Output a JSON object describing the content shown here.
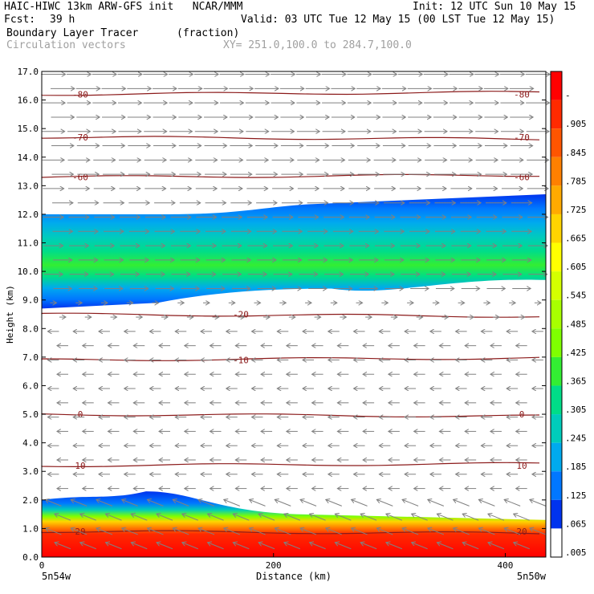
{
  "header": {
    "title_left": "HAIC-HIWC 13km ARW-GFS init   NCAR/MMM",
    "init": "Init: 12 UTC Sun 10 May 15",
    "fcst_label": "Fcst:",
    "fcst_value": "39 h",
    "valid": "Valid: 03 UTC Tue 12 May 15 (00 LST Tue 12 May 15)",
    "field_name": "Boundary Layer Tracer",
    "field_units": "(fraction)",
    "vector_name": "Circulation vectors",
    "xsec": "XY= 251.0,100.0 to 284.7,100.0"
  },
  "chart_data": {
    "type": "heatmap",
    "ylabel": "Height (km)",
    "xlabel": "Distance (km)",
    "x_start_label": "5n54w",
    "x_end_label": "5n50w",
    "xlim": [
      0,
      435
    ],
    "ylim": [
      0,
      17
    ],
    "xticks": [
      "0",
      "200",
      "400"
    ],
    "xtick_values": [
      0,
      200,
      400
    ],
    "yticks": [
      "0.0",
      "1.0",
      "2.0",
      "3.0",
      "4.0",
      "5.0",
      "6.0",
      "7.0",
      "8.0",
      "9.0",
      "10.0",
      "11.0",
      "12.0",
      "13.0",
      "14.0",
      "15.0",
      "16.0",
      "17.0"
    ],
    "colorbar": {
      "labels": [
        "-",
        ".905",
        ".845",
        ".785",
        ".725",
        ".665",
        ".605",
        ".545",
        ".485",
        ".425",
        ".365",
        ".305",
        ".245",
        ".185",
        ".125",
        ".065",
        ".005"
      ],
      "colors": [
        "#ff0000",
        "#ff2a00",
        "#ff5500",
        "#ff8000",
        "#ffaa00",
        "#ffd400",
        "#ffff00",
        "#d4ff00",
        "#a8ff00",
        "#7fff00",
        "#33ee33",
        "#00dd88",
        "#00ccbb",
        "#00aaee",
        "#0077ff",
        "#0033ee",
        "#ffffff"
      ]
    },
    "tracer_layers": [
      {
        "name": "upper",
        "bottom_left_km": 8.7,
        "top_left_km": 12.0,
        "bottom_right_km": 9.7,
        "top_right_km": 12.7,
        "peak_km": 10.6,
        "peak_value": 0.365
      },
      {
        "name": "boundary",
        "bottom_km": 0.0,
        "top_left_km": 2.0,
        "top_peak_km": 2.3,
        "top_right_km": 1.3,
        "max_value": 0.965
      }
    ],
    "isotherms": [
      {
        "label": "-80",
        "height_km": 16.2
      },
      {
        "label": "-70",
        "height_km": 14.7
      },
      {
        "label": "-60",
        "height_km": 13.3
      },
      {
        "label": "-20",
        "height_km": 8.5
      },
      {
        "label": "-10",
        "height_km": 6.9
      },
      {
        "label": "0",
        "height_km": 5.0
      },
      {
        "label": "10",
        "height_km": 3.2
      },
      {
        "label": "20",
        "height_km": 0.9
      }
    ],
    "vectors": {
      "upper_direction": "east",
      "lower_direction": "west",
      "reversal_height_km": 8.5
    },
    "contour_color": "#8b1a1a",
    "vector_color": "#808080"
  }
}
